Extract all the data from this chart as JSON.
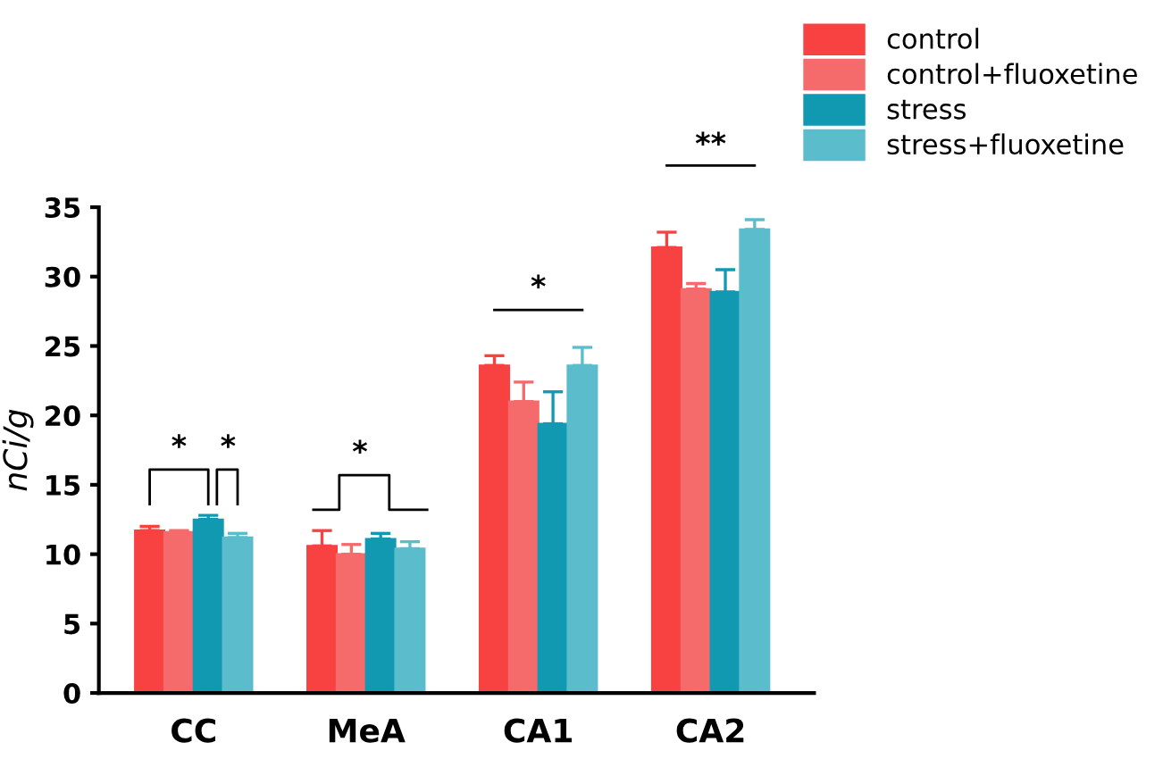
{
  "chart_data": {
    "type": "bar",
    "ylabel": "nCi/g",
    "categories": [
      "CC",
      "MeA",
      "CA1",
      "CA2"
    ],
    "series": [
      {
        "name": "control",
        "color": "#f84242",
        "values": [
          11.7,
          10.6,
          23.6,
          32.1
        ],
        "errors": [
          0.3,
          1.1,
          0.7,
          1.1
        ]
      },
      {
        "name": "control+fluoxetine",
        "color": "#f56b6b",
        "values": [
          11.6,
          10.0,
          21.0,
          29.1
        ],
        "errors": [
          0.1,
          0.7,
          1.4,
          0.4
        ]
      },
      {
        "name": "stress",
        "color": "#1199b2",
        "values": [
          12.5,
          11.1,
          19.4,
          28.9
        ],
        "errors": [
          0.3,
          0.4,
          2.3,
          1.6
        ]
      },
      {
        "name": "stress+fluoxetine",
        "color": "#5bbccc",
        "values": [
          11.2,
          10.4,
          23.6,
          33.4
        ],
        "errors": [
          0.3,
          0.5,
          1.3,
          0.7
        ]
      }
    ],
    "annotations": [
      "*",
      "*",
      "*",
      "*",
      "**"
    ],
    "ylim": [
      0,
      35
    ],
    "yticks": [
      0,
      5,
      10,
      15,
      20,
      25,
      30,
      35
    ],
    "legend": "top right",
    "grid": false
  }
}
